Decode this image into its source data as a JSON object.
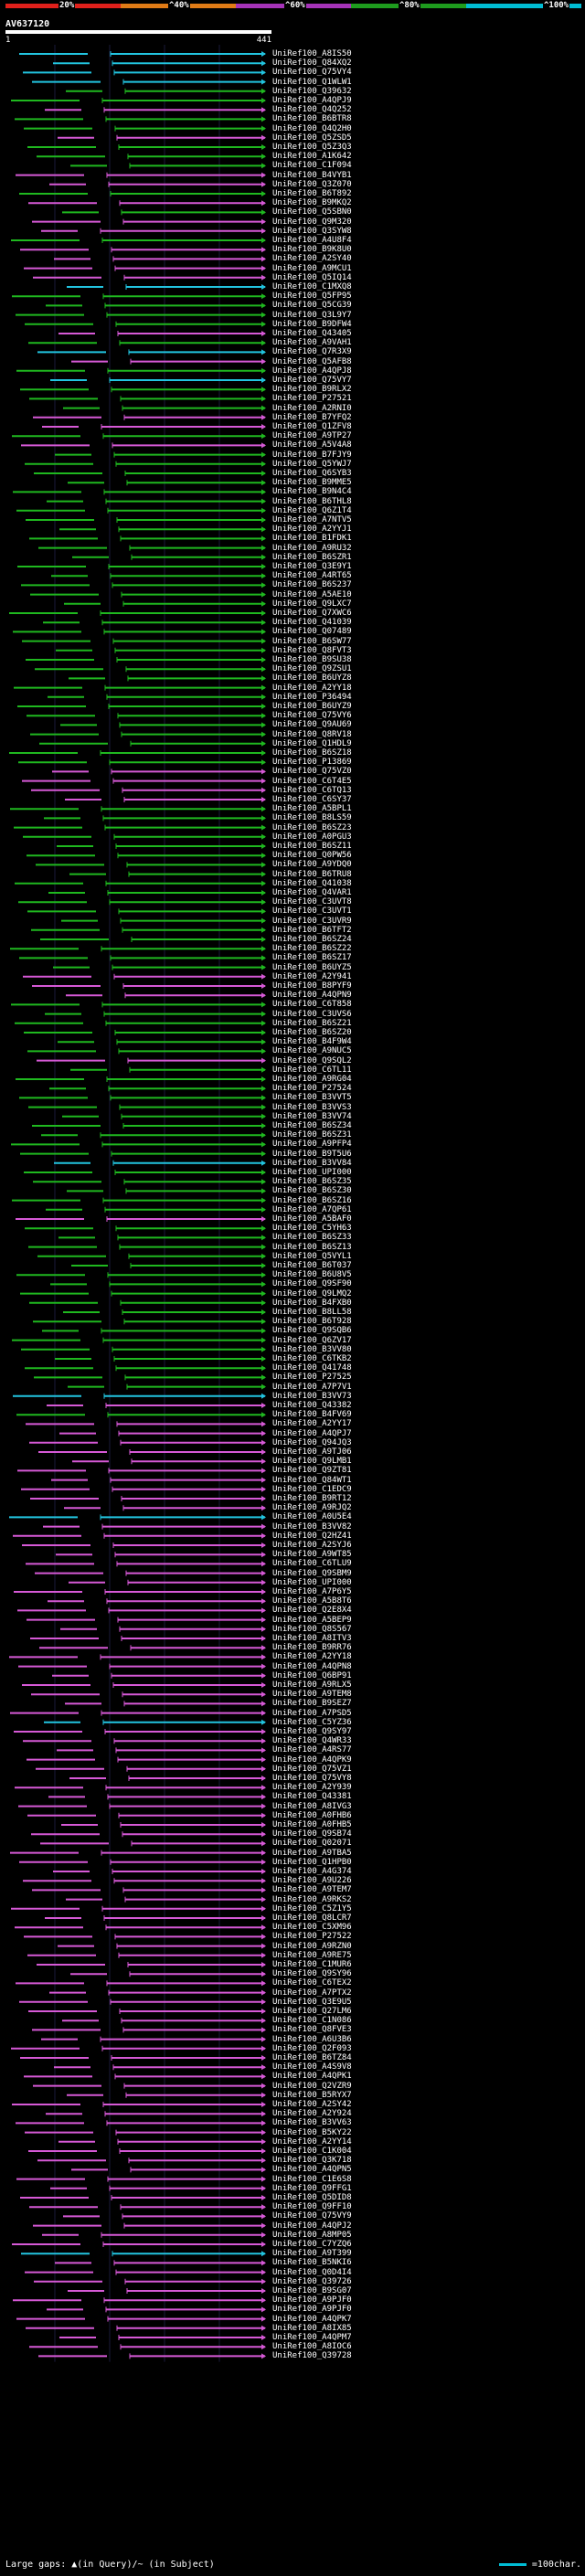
{
  "header": {
    "query_id": "AV637120",
    "tick_start": "1",
    "tick_end": "441",
    "percent_labels": [
      "20%",
      "^40%",
      "^60%",
      "^80%",
      "^100%"
    ]
  },
  "colors": {
    "p20": "#e0201b",
    "p40": "#e07b16",
    "p60": "#a533b8",
    "p80": "#1e9c1e",
    "p100": "#00bcd4",
    "magenta": "#d659d6",
    "green": "#1fb81f",
    "cyan": "#22c4df"
  },
  "hits": [
    {
      "label": "UniRef100_A8IS50",
      "c": "cyan"
    },
    {
      "label": "UniRef100_Q84XQ2",
      "c": "cyan"
    },
    {
      "label": "UniRef100_Q75VY4",
      "c": "cyan"
    },
    {
      "label": "UniRef100_Q1WLW1",
      "c": "cyan"
    },
    {
      "label": "UniRef100_Q39632",
      "c": "green"
    },
    {
      "label": "UniRef100_A4QPJ9",
      "c": "green"
    },
    {
      "label": "UniRef100_Q4Q252",
      "c": "magenta"
    },
    {
      "label": "UniRef100_B6BTR8",
      "c": "green"
    },
    {
      "label": "UniRef100_Q4Q2H0",
      "c": "green"
    },
    {
      "label": "UniRef100_Q5ZSD5",
      "c": "magenta"
    },
    {
      "label": "UniRef100_Q5Z3Q3",
      "c": "green"
    },
    {
      "label": "UniRef100_A1K642",
      "c": "green"
    },
    {
      "label": "UniRef100_C1F094",
      "c": "green"
    },
    {
      "label": "UniRef100_B4VYB1",
      "c": "magenta"
    },
    {
      "label": "UniRef100_Q3Z070",
      "c": "magenta"
    },
    {
      "label": "UniRef100_B6T892",
      "c": "green"
    },
    {
      "label": "UniRef100_B9MKQ2",
      "c": "magenta"
    },
    {
      "label": "UniRef100_Q5SBN0",
      "c": "green"
    },
    {
      "label": "UniRef100_Q9M320",
      "c": "magenta"
    },
    {
      "label": "UniRef100_Q3SYW8",
      "c": "magenta"
    },
    {
      "label": "UniRef100_A4U8F4",
      "c": "green"
    },
    {
      "label": "UniRef100_B9K8U0",
      "c": "magenta"
    },
    {
      "label": "UniRef100_A2SY40",
      "c": "magenta"
    },
    {
      "label": "UniRef100_A9MCU1",
      "c": "magenta"
    },
    {
      "label": "UniRef100_Q5IQ14",
      "c": "magenta"
    },
    {
      "label": "UniRef100_C1MXQ8",
      "c": "cyan"
    },
    {
      "label": "UniRef100_Q5FP95",
      "c": "green"
    },
    {
      "label": "UniRef100_Q5CG39",
      "c": "green"
    },
    {
      "label": "UniRef100_Q3L9Y7",
      "c": "green"
    },
    {
      "label": "UniRef100_B9DFW4",
      "c": "green"
    },
    {
      "label": "UniRef100_Q43405",
      "c": "magenta"
    },
    {
      "label": "UniRef100_A9VAH1",
      "c": "green"
    },
    {
      "label": "UniRef100_Q7R3X9",
      "c": "cyan"
    },
    {
      "label": "UniRef100_Q5AFB8",
      "c": "magenta"
    },
    {
      "label": "UniRef100_A4QPJ8",
      "c": "green"
    },
    {
      "label": "UniRef100_Q75VY7",
      "c": "cyan"
    },
    {
      "label": "UniRef100_B9RLX2",
      "c": "green"
    },
    {
      "label": "UniRef100_P27521",
      "c": "green"
    },
    {
      "label": "UniRef100_A2RNI0",
      "c": "green"
    },
    {
      "label": "UniRef100_B7YFQ2",
      "c": "magenta"
    },
    {
      "label": "UniRef100_Q1ZFV8",
      "c": "magenta"
    },
    {
      "label": "UniRef100_A9TP27",
      "c": "green"
    },
    {
      "label": "UniRef100_A5V4A8",
      "c": "magenta"
    },
    {
      "label": "UniRef100_B7FJY9",
      "c": "green"
    },
    {
      "label": "UniRef100_Q5YWJ7",
      "c": "green"
    },
    {
      "label": "UniRef100_Q6SYB3",
      "c": "green"
    },
    {
      "label": "UniRef100_B9MME5",
      "c": "green"
    },
    {
      "label": "UniRef100_B9N4C4",
      "c": "green"
    },
    {
      "label": "UniRef100_B6THL8",
      "c": "green"
    },
    {
      "label": "UniRef100_Q6Z1T4",
      "c": "green"
    },
    {
      "label": "UniRef100_A7NTV5",
      "c": "green"
    },
    {
      "label": "UniRef100_A2YYJ1",
      "c": "green"
    },
    {
      "label": "UniRef100_B1FDK1",
      "c": "green"
    },
    {
      "label": "UniRef100_A9RU32",
      "c": "green"
    },
    {
      "label": "UniRef100_B6SZR1",
      "c": "green"
    },
    {
      "label": "UniRef100_Q3E9Y1",
      "c": "green"
    },
    {
      "label": "UniRef100_A4RT65",
      "c": "green"
    },
    {
      "label": "UniRef100_B6S237",
      "c": "green"
    },
    {
      "label": "UniRef100_A5AE10",
      "c": "green"
    },
    {
      "label": "UniRef100_Q9LXC7",
      "c": "green"
    },
    {
      "label": "UniRef100_Q7XWC6",
      "c": "green"
    },
    {
      "label": "UniRef100_Q41039",
      "c": "green"
    },
    {
      "label": "UniRef100_Q07489",
      "c": "green"
    },
    {
      "label": "UniRef100_B6SW77",
      "c": "green"
    },
    {
      "label": "UniRef100_Q8FVT3",
      "c": "green"
    },
    {
      "label": "UniRef100_B9SU38",
      "c": "green"
    },
    {
      "label": "UniRef100_Q9ZSU1",
      "c": "green"
    },
    {
      "label": "UniRef100_B6UYZ8",
      "c": "green"
    },
    {
      "label": "UniRef100_A2YY18",
      "c": "green"
    },
    {
      "label": "UniRef100_P36494",
      "c": "green"
    },
    {
      "label": "UniRef100_B6UYZ9",
      "c": "green"
    },
    {
      "label": "UniRef100_Q75VY6",
      "c": "green"
    },
    {
      "label": "UniRef100_Q9AU69",
      "c": "green"
    },
    {
      "label": "UniRef100_Q8RV18",
      "c": "green"
    },
    {
      "label": "UniRef100_Q1HDL9",
      "c": "green"
    },
    {
      "label": "UniRef100_B6SZ18",
      "c": "green"
    },
    {
      "label": "UniRef100_P13869",
      "c": "green"
    },
    {
      "label": "UniRef100_Q75VZ0",
      "c": "magenta"
    },
    {
      "label": "UniRef100_C6T4E5",
      "c": "magenta"
    },
    {
      "label": "UniRef100_C6TQ13",
      "c": "magenta"
    },
    {
      "label": "UniRef100_C6SY37",
      "c": "magenta"
    },
    {
      "label": "UniRef100_A5BPL1",
      "c": "green"
    },
    {
      "label": "UniRef100_B8LS59",
      "c": "green"
    },
    {
      "label": "UniRef100_B6SZ23",
      "c": "green"
    },
    {
      "label": "UniRef100_A0PGU3",
      "c": "green"
    },
    {
      "label": "UniRef100_B6SZ11",
      "c": "green"
    },
    {
      "label": "UniRef100_Q0PW56",
      "c": "green"
    },
    {
      "label": "UniRef100_A9YDQ0",
      "c": "green"
    },
    {
      "label": "UniRef100_B6TRU8",
      "c": "green"
    },
    {
      "label": "UniRef100_Q41038",
      "c": "green"
    },
    {
      "label": "UniRef100_Q4VAR1",
      "c": "green"
    },
    {
      "label": "UniRef100_C3UVT8",
      "c": "green"
    },
    {
      "label": "UniRef100_C3UVT1",
      "c": "green"
    },
    {
      "label": "UniRef100_C3UVR9",
      "c": "green"
    },
    {
      "label": "UniRef100_B6TFT2",
      "c": "green"
    },
    {
      "label": "UniRef100_B6SZ24",
      "c": "green"
    },
    {
      "label": "UniRef100_B6SZ22",
      "c": "green"
    },
    {
      "label": "UniRef100_B6SZ17",
      "c": "green"
    },
    {
      "label": "UniRef100_B6UYZ5",
      "c": "green"
    },
    {
      "label": "UniRef100_A2Y941",
      "c": "magenta"
    },
    {
      "label": "UniRef100_B8PYF9",
      "c": "magenta"
    },
    {
      "label": "UniRef100_A4QPN9",
      "c": "magenta"
    },
    {
      "label": "UniRef100_C6T858",
      "c": "green"
    },
    {
      "label": "UniRef100_C3UVS6",
      "c": "green"
    },
    {
      "label": "UniRef100_B6SZ21",
      "c": "green"
    },
    {
      "label": "UniRef100_B6SZ20",
      "c": "green"
    },
    {
      "label": "UniRef100_B4F9W4",
      "c": "green"
    },
    {
      "label": "UniRef100_A9NUC5",
      "c": "green"
    },
    {
      "label": "UniRef100_Q9SQL2",
      "c": "magenta"
    },
    {
      "label": "UniRef100_C6TL11",
      "c": "green"
    },
    {
      "label": "UniRef100_A9RG04",
      "c": "green"
    },
    {
      "label": "UniRef100_P27524",
      "c": "green"
    },
    {
      "label": "UniRef100_B3VVT5",
      "c": "green"
    },
    {
      "label": "UniRef100_B3VVS3",
      "c": "green"
    },
    {
      "label": "UniRef100_B3VV74",
      "c": "green"
    },
    {
      "label": "UniRef100_B6SZ34",
      "c": "green"
    },
    {
      "label": "UniRef100_B6SZ31",
      "c": "green"
    },
    {
      "label": "UniRef100_A9PFP4",
      "c": "green"
    },
    {
      "label": "UniRef100_B9T5U6",
      "c": "green"
    },
    {
      "label": "UniRef100_B3VV84",
      "c": "cyan"
    },
    {
      "label": "UniRef100_UPI000",
      "c": "green"
    },
    {
      "label": "UniRef100_B6SZ35",
      "c": "green"
    },
    {
      "label": "UniRef100_B6SZ30",
      "c": "green"
    },
    {
      "label": "UniRef100_B6SZ16",
      "c": "green"
    },
    {
      "label": "UniRef100_A7QP61",
      "c": "green"
    },
    {
      "label": "UniRef100_A5BAF0",
      "c": "magenta"
    },
    {
      "label": "UniRef100_C5YH63",
      "c": "green"
    },
    {
      "label": "UniRef100_B6SZ33",
      "c": "green"
    },
    {
      "label": "UniRef100_B6SZ13",
      "c": "green"
    },
    {
      "label": "UniRef100_Q5VYL1",
      "c": "green"
    },
    {
      "label": "UniRef100_B6T037",
      "c": "green"
    },
    {
      "label": "UniRef100_B6U8V5",
      "c": "green"
    },
    {
      "label": "UniRef100_Q9SF90",
      "c": "green"
    },
    {
      "label": "UniRef100_Q9LMQ2",
      "c": "green"
    },
    {
      "label": "UniRef100_B4FXB0",
      "c": "green"
    },
    {
      "label": "UniRef100_B8LL58",
      "c": "green"
    },
    {
      "label": "UniRef100_B6T928",
      "c": "green"
    },
    {
      "label": "UniRef100_Q9SQB6",
      "c": "green"
    },
    {
      "label": "UniRef100_Q6ZV17",
      "c": "green"
    },
    {
      "label": "UniRef100_B3VV80",
      "c": "green"
    },
    {
      "label": "UniRef100_C6TKB2",
      "c": "green"
    },
    {
      "label": "UniRef100_Q41748",
      "c": "green"
    },
    {
      "label": "UniRef100_P27525",
      "c": "green"
    },
    {
      "label": "UniRef100_A7P7V1",
      "c": "green"
    },
    {
      "label": "UniRef100_B3VV73",
      "c": "cyan"
    },
    {
      "label": "UniRef100_Q43382",
      "c": "magenta"
    },
    {
      "label": "UniRef100_B4FV69",
      "c": "green"
    },
    {
      "label": "UniRef100_A2YY17",
      "c": "magenta"
    },
    {
      "label": "UniRef100_A4QPJ7",
      "c": "magenta"
    },
    {
      "label": "UniRef100_Q94JQ3",
      "c": "magenta"
    },
    {
      "label": "UniRef100_A9TJ06",
      "c": "magenta"
    },
    {
      "label": "UniRef100_Q9LMB1",
      "c": "magenta"
    },
    {
      "label": "UniRef100_Q9ZT81",
      "c": "magenta"
    },
    {
      "label": "UniRef100_Q84WT1",
      "c": "magenta"
    },
    {
      "label": "UniRef100_C1EDC9",
      "c": "magenta"
    },
    {
      "label": "UniRef100_B9RT12",
      "c": "magenta"
    },
    {
      "label": "UniRef100_A9RJQ2",
      "c": "magenta"
    },
    {
      "label": "UniRef100_A0U5E4",
      "c": "cyan"
    },
    {
      "label": "UniRef100_B3VV82",
      "c": "magenta"
    },
    {
      "label": "UniRef100_Q2HZ41",
      "c": "magenta"
    },
    {
      "label": "UniRef100_A2SYJ6",
      "c": "magenta"
    },
    {
      "label": "UniRef100_A9WT85",
      "c": "magenta"
    },
    {
      "label": "UniRef100_C6TLU9",
      "c": "magenta"
    },
    {
      "label": "UniRef100_Q9SBM9",
      "c": "magenta"
    },
    {
      "label": "UniRef100_UPI000",
      "c": "magenta"
    },
    {
      "label": "UniRef100_A7P6Y5",
      "c": "magenta"
    },
    {
      "label": "UniRef100_A5B8T6",
      "c": "magenta"
    },
    {
      "label": "UniRef100_Q2E8X4",
      "c": "magenta"
    },
    {
      "label": "UniRef100_A5BEP9",
      "c": "magenta"
    },
    {
      "label": "UniRef100_Q8S567",
      "c": "magenta"
    },
    {
      "label": "UniRef100_A8ITV3",
      "c": "magenta"
    },
    {
      "label": "UniRef100_B9RR76",
      "c": "magenta"
    },
    {
      "label": "UniRef100_A2YY18",
      "c": "magenta"
    },
    {
      "label": "UniRef100_A4QPN8",
      "c": "magenta"
    },
    {
      "label": "UniRef100_Q6BP91",
      "c": "magenta"
    },
    {
      "label": "UniRef100_A9RLX5",
      "c": "magenta"
    },
    {
      "label": "UniRef100_A9TEM8",
      "c": "magenta"
    },
    {
      "label": "UniRef100_B9SEZ7",
      "c": "magenta"
    },
    {
      "label": "UniRef100_A7PSD5",
      "c": "magenta"
    },
    {
      "label": "UniRef100_C5YZ36",
      "c": "cyan"
    },
    {
      "label": "UniRef100_Q9SY97",
      "c": "magenta"
    },
    {
      "label": "UniRef100_Q4WR33",
      "c": "magenta"
    },
    {
      "label": "UniRef100_A4RS77",
      "c": "magenta"
    },
    {
      "label": "UniRef100_A4QPK9",
      "c": "magenta"
    },
    {
      "label": "UniRef100_Q75VZ1",
      "c": "magenta"
    },
    {
      "label": "UniRef100_Q75VY8",
      "c": "magenta"
    },
    {
      "label": "UniRef100_A2Y939",
      "c": "magenta"
    },
    {
      "label": "UniRef100_Q43381",
      "c": "magenta"
    },
    {
      "label": "UniRef100_A8IVG3",
      "c": "magenta"
    },
    {
      "label": "UniRef100_A0FHB6",
      "c": "magenta"
    },
    {
      "label": "UniRef100_A0FHB5",
      "c": "magenta"
    },
    {
      "label": "UniRef100_Q9SB74",
      "c": "magenta"
    },
    {
      "label": "UniRef100_Q02071",
      "c": "magenta"
    },
    {
      "label": "UniRef100_A9TBA5",
      "c": "magenta"
    },
    {
      "label": "UniRef100_Q1HPB0",
      "c": "magenta"
    },
    {
      "label": "UniRef100_A4G374",
      "c": "magenta"
    },
    {
      "label": "UniRef100_A9U226",
      "c": "magenta"
    },
    {
      "label": "UniRef100_A9TEM7",
      "c": "magenta"
    },
    {
      "label": "UniRef100_A9RKS2",
      "c": "magenta"
    },
    {
      "label": "UniRef100_C5Z1Y5",
      "c": "magenta"
    },
    {
      "label": "UniRef100_Q8LCR7",
      "c": "magenta"
    },
    {
      "label": "UniRef100_C5XM96",
      "c": "magenta"
    },
    {
      "label": "UniRef100_P27522",
      "c": "magenta"
    },
    {
      "label": "UniRef100_A9RZN0",
      "c": "magenta"
    },
    {
      "label": "UniRef100_A9RE75",
      "c": "magenta"
    },
    {
      "label": "UniRef100_C1MUR6",
      "c": "magenta"
    },
    {
      "label": "UniRef100_Q9SY96",
      "c": "magenta"
    },
    {
      "label": "UniRef100_C6TEX2",
      "c": "magenta"
    },
    {
      "label": "UniRef100_A7PTX2",
      "c": "magenta"
    },
    {
      "label": "UniRef100_Q3E9U5",
      "c": "magenta"
    },
    {
      "label": "UniRef100_Q27LM6",
      "c": "magenta"
    },
    {
      "label": "UniRef100_C1N086",
      "c": "magenta"
    },
    {
      "label": "UniRef100_Q8FVE3",
      "c": "magenta"
    },
    {
      "label": "UniRef100_A6U3B6",
      "c": "magenta"
    },
    {
      "label": "UniRef100_Q2F093",
      "c": "magenta"
    },
    {
      "label": "UniRef100_B6TZ84",
      "c": "magenta"
    },
    {
      "label": "UniRef100_A4S9V8",
      "c": "magenta"
    },
    {
      "label": "UniRef100_A4QPK1",
      "c": "magenta"
    },
    {
      "label": "UniRef100_Q2VZR9",
      "c": "magenta"
    },
    {
      "label": "UniRef100_B5RYX7",
      "c": "magenta"
    },
    {
      "label": "UniRef100_A2SY42",
      "c": "magenta"
    },
    {
      "label": "UniRef100_A2Y924",
      "c": "magenta"
    },
    {
      "label": "UniRef100_B3VV63",
      "c": "magenta"
    },
    {
      "label": "UniRef100_B5KY22",
      "c": "magenta"
    },
    {
      "label": "UniRef100_A2YY14",
      "c": "magenta"
    },
    {
      "label": "UniRef100_C1K004",
      "c": "magenta"
    },
    {
      "label": "UniRef100_Q3K718",
      "c": "magenta"
    },
    {
      "label": "UniRef100_A4QPN5",
      "c": "magenta"
    },
    {
      "label": "UniRef100_C1E6S8",
      "c": "magenta"
    },
    {
      "label": "UniRef100_Q9FFG1",
      "c": "magenta"
    },
    {
      "label": "UniRef100_Q5DID8",
      "c": "magenta"
    },
    {
      "label": "UniRef100_Q9FF10",
      "c": "magenta"
    },
    {
      "label": "UniRef100_Q75VY9",
      "c": "magenta"
    },
    {
      "label": "UniRef100_A4QPJ2",
      "c": "magenta"
    },
    {
      "label": "UniRef100_A8MP05",
      "c": "magenta"
    },
    {
      "label": "UniRef100_C7YZQ6",
      "c": "magenta"
    },
    {
      "label": "UniRef100_A9T399",
      "c": "cyan"
    },
    {
      "label": "UniRef100_B5NKI6",
      "c": "magenta"
    },
    {
      "label": "UniRef100_Q0D4I4",
      "c": "magenta"
    },
    {
      "label": "UniRef100_Q39726",
      "c": "magenta"
    },
    {
      "label": "UniRef100_B9SG07",
      "c": "magenta"
    },
    {
      "label": "UniRef100_A9PJF0",
      "c": "magenta"
    },
    {
      "label": "UniRef100_A9PJF0",
      "c": "magenta"
    },
    {
      "label": "UniRef100_A4QPK7",
      "c": "magenta"
    },
    {
      "label": "UniRef100_A8IX85",
      "c": "magenta"
    },
    {
      "label": "UniRef100_A4QPM7",
      "c": "magenta"
    },
    {
      "label": "UniRef100_A8IOC6",
      "c": "magenta"
    },
    {
      "label": "UniRef100_Q39728",
      "c": "magenta"
    }
  ],
  "footer": {
    "legend": "Large gaps: ▲(in Query)/~ (in Subject)",
    "scale": "=100char."
  }
}
